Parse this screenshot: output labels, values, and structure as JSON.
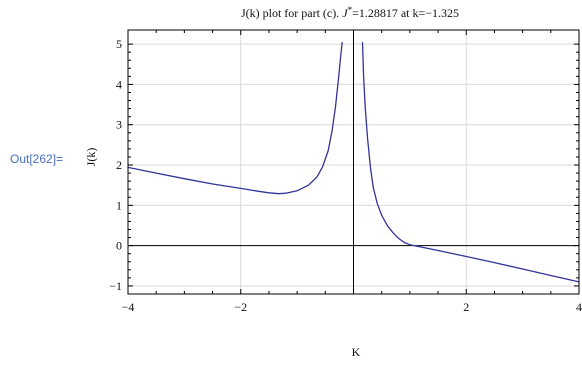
{
  "cell": {
    "out_label": "Out[262]="
  },
  "chart_data": {
    "type": "line",
    "title": "J(k) plot for part (c). J*=1.28817 at k=−1.325",
    "title_prefix": "J(k) plot for part (c). ",
    "title_symbol": "J",
    "title_sup": "*",
    "title_suffix": "=1.28817 at k=−1.325",
    "xlabel": "K",
    "ylabel": "J(k)",
    "xlim": [
      -4,
      4
    ],
    "ylim": [
      -1.2,
      5.35
    ],
    "x_ticks": [
      {
        "value": -4,
        "label": "−4"
      },
      {
        "value": -2,
        "label": "−2"
      },
      {
        "value": 0,
        "label": ""
      },
      {
        "value": 2,
        "label": "2"
      },
      {
        "value": 4,
        "label": "4"
      }
    ],
    "y_ticks": [
      {
        "value": -1,
        "label": "−1"
      },
      {
        "value": 0,
        "label": "0"
      },
      {
        "value": 1,
        "label": "1"
      },
      {
        "value": 2,
        "label": "2"
      },
      {
        "value": 3,
        "label": "3"
      },
      {
        "value": 4,
        "label": "4"
      },
      {
        "value": 5,
        "label": "5"
      }
    ],
    "grid": true,
    "series": [
      {
        "color": "#33339a",
        "segments": [
          [
            [
              -4.0,
              1.94
            ],
            [
              -3.5,
              1.8
            ],
            [
              -3.0,
              1.66
            ],
            [
              -2.5,
              1.53
            ],
            [
              -2.0,
              1.42
            ],
            [
              -1.7,
              1.35
            ],
            [
              -1.5,
              1.31
            ],
            [
              -1.325,
              1.288
            ],
            [
              -1.2,
              1.3
            ],
            [
              -1.0,
              1.36
            ],
            [
              -0.8,
              1.5
            ],
            [
              -0.65,
              1.7
            ],
            [
              -0.55,
              1.95
            ],
            [
              -0.45,
              2.35
            ],
            [
              -0.38,
              2.85
            ],
            [
              -0.32,
              3.45
            ],
            [
              -0.27,
              4.1
            ],
            [
              -0.23,
              4.65
            ],
            [
              -0.2,
              5.05
            ]
          ],
          [
            [
              0.16,
              5.05
            ],
            [
              0.18,
              4.2
            ],
            [
              0.21,
              3.4
            ],
            [
              0.25,
              2.65
            ],
            [
              0.3,
              1.95
            ],
            [
              0.35,
              1.45
            ],
            [
              0.42,
              1.05
            ],
            [
              0.5,
              0.75
            ],
            [
              0.6,
              0.5
            ],
            [
              0.7,
              0.32
            ],
            [
              0.8,
              0.18
            ],
            [
              0.9,
              0.08
            ],
            [
              1.0,
              0.02
            ],
            [
              1.5,
              -0.12
            ],
            [
              2.0,
              -0.27
            ],
            [
              2.5,
              -0.42
            ],
            [
              3.0,
              -0.58
            ],
            [
              3.5,
              -0.74
            ],
            [
              4.0,
              -0.9
            ]
          ]
        ]
      }
    ]
  }
}
